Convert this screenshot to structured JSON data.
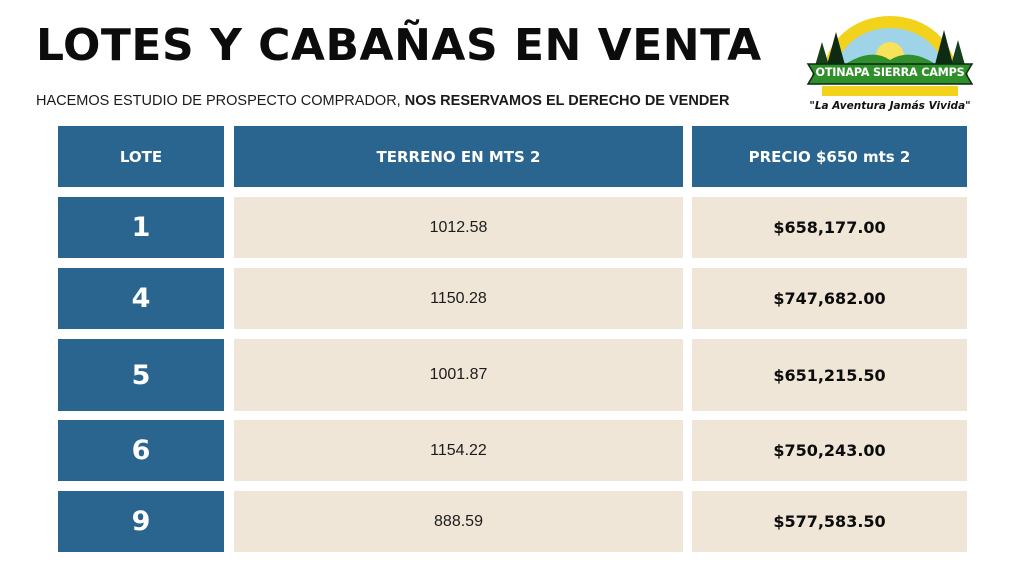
{
  "header": {
    "title": "LOTES Y CABAÑAS EN VENTA",
    "subtitle_regular": "HACEMOS ESTUDIO DE PROSPECTO COMPRADOR, ",
    "subtitle_bold": "NOS RESERVAMOS EL DERECHO DE VENDER"
  },
  "logo": {
    "name": "OTINAPA SIERRA CAMPS",
    "tagline": "\"La Aventura Jamás Vivida\"",
    "colors": {
      "green": "#2f8f2a",
      "yellow": "#f2d21a",
      "dark": "#0d2a12"
    }
  },
  "table": {
    "columns": [
      "LOTE",
      "TERRENO EN MTS 2",
      "PRECIO $650 mts 2"
    ],
    "rows": [
      {
        "lote": "1",
        "terreno": "1012.58",
        "precio": "$658,177.00"
      },
      {
        "lote": "4",
        "terreno": "1150.28",
        "precio": "$747,682.00"
      },
      {
        "lote": "5",
        "terreno": "1001.87",
        "precio": "$651,215.50"
      },
      {
        "lote": "6",
        "terreno": "1154.22",
        "precio": "$750,243.00"
      },
      {
        "lote": "9",
        "terreno": "888.59",
        "precio": "$577,583.50"
      }
    ],
    "colors": {
      "header_bg": "#2a6590",
      "row_bg": "#efe6d7"
    }
  }
}
